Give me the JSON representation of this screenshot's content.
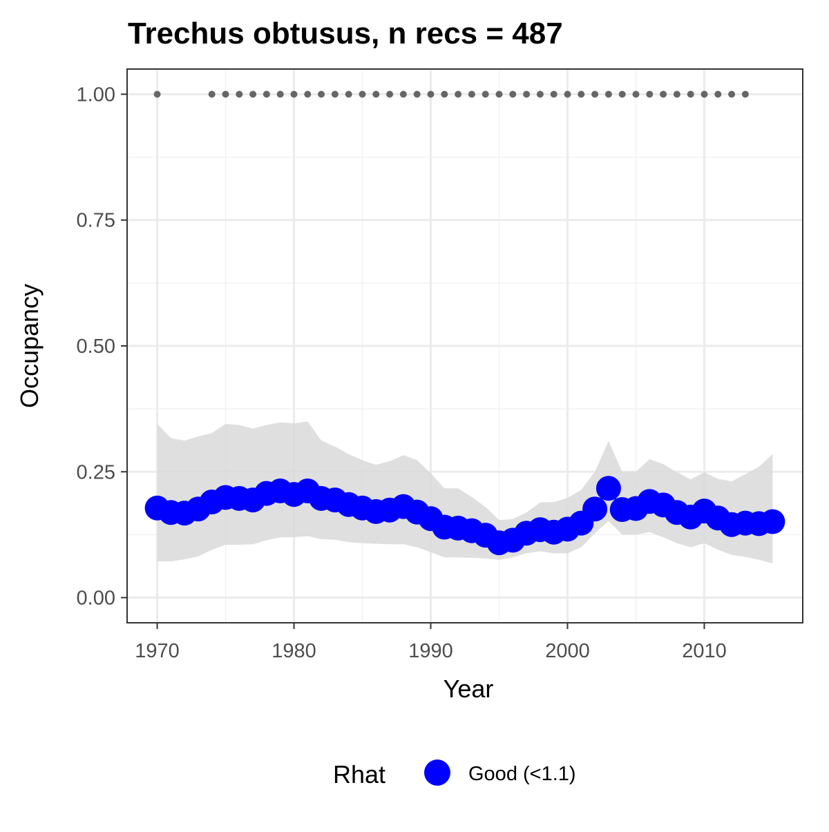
{
  "chart_data": {
    "type": "line",
    "title": "Trechus obtusus, n recs = 487",
    "xlabel": "Year",
    "ylabel": "Occupancy",
    "xlim": [
      1967.8,
      2017.2
    ],
    "ylim": [
      -0.05,
      1.05
    ],
    "x_ticks": [
      1970,
      1980,
      1990,
      2000,
      2010
    ],
    "y_ticks": [
      0.0,
      0.25,
      0.5,
      0.75,
      1.0
    ],
    "y_tick_labels": [
      "0.00",
      "0.25",
      "0.50",
      "0.75",
      "1.00"
    ],
    "grid": true,
    "legend": {
      "title": "Rhat",
      "position": "bottom",
      "items": [
        {
          "label": "Good (<1.1)",
          "color": "#0000ff"
        }
      ]
    },
    "series": [
      {
        "x": [
          1970,
          1971,
          1972,
          1973,
          1974,
          1975,
          1976,
          1977,
          1978,
          1979,
          1980,
          1981,
          1982,
          1983,
          1984,
          1985,
          1986,
          1987,
          1988,
          1989,
          1990,
          1991,
          1992,
          1993,
          1994,
          1995,
          1996,
          1997,
          1998,
          1999,
          2000,
          2001,
          2002,
          2003,
          2004,
          2005,
          2006,
          2007,
          2008,
          2009,
          2010,
          2011,
          2012,
          2013,
          2014,
          2015
        ],
        "mean": [
          0.178,
          0.169,
          0.168,
          0.176,
          0.19,
          0.199,
          0.197,
          0.194,
          0.207,
          0.212,
          0.205,
          0.212,
          0.197,
          0.194,
          0.185,
          0.178,
          0.171,
          0.174,
          0.181,
          0.17,
          0.157,
          0.14,
          0.138,
          0.133,
          0.124,
          0.109,
          0.114,
          0.128,
          0.135,
          0.13,
          0.136,
          0.148,
          0.176,
          0.217,
          0.175,
          0.177,
          0.191,
          0.184,
          0.169,
          0.16,
          0.172,
          0.158,
          0.145,
          0.148,
          0.147,
          0.151
        ],
        "lower": [
          0.072,
          0.072,
          0.076,
          0.082,
          0.095,
          0.105,
          0.105,
          0.106,
          0.114,
          0.12,
          0.12,
          0.122,
          0.116,
          0.115,
          0.11,
          0.108,
          0.107,
          0.106,
          0.106,
          0.1,
          0.09,
          0.08,
          0.08,
          0.079,
          0.078,
          0.075,
          0.08,
          0.088,
          0.092,
          0.088,
          0.088,
          0.1,
          0.128,
          0.152,
          0.125,
          0.125,
          0.13,
          0.12,
          0.108,
          0.1,
          0.108,
          0.095,
          0.085,
          0.081,
          0.075,
          0.068
        ],
        "upper": [
          0.345,
          0.317,
          0.312,
          0.32,
          0.327,
          0.345,
          0.343,
          0.336,
          0.343,
          0.348,
          0.346,
          0.35,
          0.312,
          0.3,
          0.285,
          0.273,
          0.264,
          0.271,
          0.283,
          0.273,
          0.247,
          0.217,
          0.217,
          0.2,
          0.18,
          0.154,
          0.156,
          0.169,
          0.189,
          0.19,
          0.198,
          0.214,
          0.25,
          0.311,
          0.25,
          0.25,
          0.275,
          0.265,
          0.249,
          0.235,
          0.249,
          0.236,
          0.231,
          0.245,
          0.26,
          0.285
        ],
        "color": "#0000ff",
        "ribbon_color": "#d9d9d9"
      },
      {
        "x": [
          1970,
          1974,
          1975,
          1976,
          1977,
          1978,
          1979,
          1980,
          1981,
          1982,
          1983,
          1984,
          1985,
          1986,
          1987,
          1988,
          1989,
          1990,
          1991,
          1992,
          1993,
          1994,
          1995,
          1996,
          1997,
          1998,
          1999,
          2000,
          2001,
          2002,
          2003,
          2004,
          2005,
          2006,
          2007,
          2008,
          2009,
          2010,
          2011,
          2012,
          2013
        ],
        "y": [
          1,
          1,
          1,
          1,
          1,
          1,
          1,
          1,
          1,
          1,
          1,
          1,
          1,
          1,
          1,
          1,
          1,
          1,
          1,
          1,
          1,
          1,
          1,
          1,
          1,
          1,
          1,
          1,
          1,
          1,
          1,
          1,
          1,
          1,
          1,
          1,
          1,
          1,
          1,
          1,
          1
        ],
        "color": "#666666"
      }
    ]
  }
}
